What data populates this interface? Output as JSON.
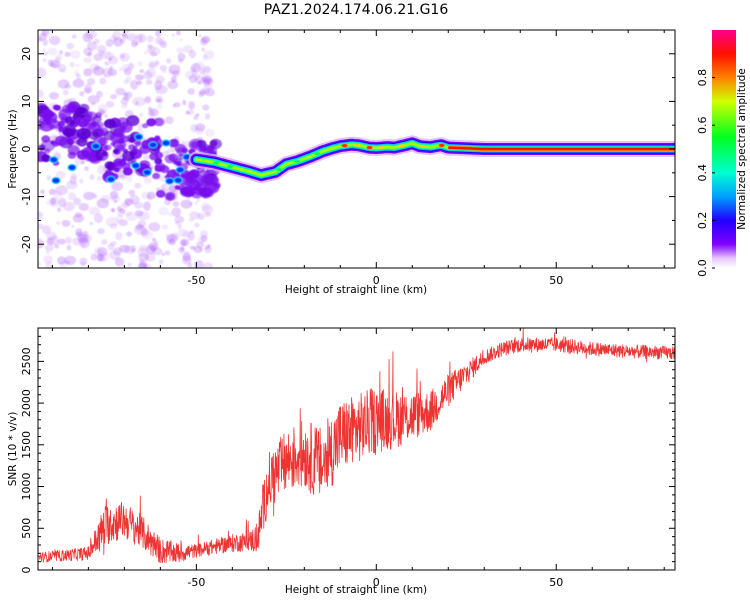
{
  "title": "PAZ1.2024.174.06.21.G16",
  "chart_data": [
    {
      "type": "heatmap",
      "xlabel": "Height of straight line (km)",
      "ylabel": "Frequency (Hz)",
      "xlim": [
        -94,
        83
      ],
      "ylim": [
        -25,
        25
      ],
      "x_ticks": [
        -50,
        0,
        50
      ],
      "y_ticks": [
        -20,
        -10,
        0,
        10,
        20
      ],
      "colorbar": {
        "label": "Normalized spectral amplitude",
        "range": [
          0,
          1
        ],
        "ticks": [
          0.0,
          0.2,
          0.4,
          0.6,
          0.8
        ],
        "colormap": "rainbow",
        "colors": [
          "#ffffff",
          "#8000ff",
          "#0000ff",
          "#00bfff",
          "#00ff80",
          "#00ff00",
          "#ffff00",
          "#ff8000",
          "#ff0000",
          "#ff0080"
        ]
      },
      "ridge": {
        "x": [
          -50,
          -45,
          -40,
          -35,
          -32,
          -28,
          -25,
          -22,
          -18,
          -15,
          -12,
          -10,
          -7,
          -5,
          -2,
          0,
          3,
          5,
          8,
          10,
          12,
          15,
          18,
          20,
          30,
          40,
          50,
          60,
          70,
          83
        ],
        "y": [
          -2.2,
          -2.8,
          -3.8,
          -4.8,
          -5.5,
          -4.8,
          -3.2,
          -2.6,
          -1.5,
          -0.5,
          0.2,
          0.6,
          0.9,
          0.8,
          0.3,
          0.2,
          0.4,
          0.3,
          0.8,
          1.2,
          0.6,
          0.4,
          0.8,
          0.3,
          0.0,
          0.0,
          0.0,
          0.0,
          0.0,
          0.0
        ]
      },
      "noise_region": {
        "x": [
          -94,
          -50
        ],
        "y": [
          -25,
          25
        ]
      }
    },
    {
      "type": "line",
      "xlabel": "Height of straight line (km)",
      "ylabel": "SNR (10 * v/v)",
      "xlim": [
        -94,
        83
      ],
      "ylim": [
        0,
        2900
      ],
      "x_ticks": [
        -50,
        0,
        50
      ],
      "y_ticks": [
        0,
        500,
        1000,
        1500,
        2000,
        2500
      ],
      "color": "#ee3333",
      "trend": {
        "x": [
          -94,
          -85,
          -80,
          -75,
          -70,
          -65,
          -60,
          -55,
          -50,
          -45,
          -40,
          -35,
          -33,
          -30,
          -25,
          -20,
          -15,
          -10,
          -5,
          0,
          5,
          10,
          15,
          20,
          25,
          30,
          35,
          40,
          50,
          60,
          70,
          83
        ],
        "y": [
          150,
          180,
          200,
          550,
          600,
          450,
          230,
          200,
          230,
          280,
          320,
          350,
          380,
          1050,
          1300,
          1400,
          1250,
          1600,
          1700,
          1800,
          1800,
          1850,
          1900,
          2150,
          2350,
          2550,
          2650,
          2700,
          2700,
          2650,
          2620,
          2600
        ]
      },
      "noise_amplitude": {
        "x": [
          -94,
          -80,
          -76,
          -65,
          -50,
          -35,
          -30,
          -15,
          0,
          20,
          30,
          83
        ],
        "y": [
          60,
          80,
          260,
          200,
          80,
          120,
          350,
          450,
          400,
          200,
          90,
          80
        ]
      }
    }
  ]
}
